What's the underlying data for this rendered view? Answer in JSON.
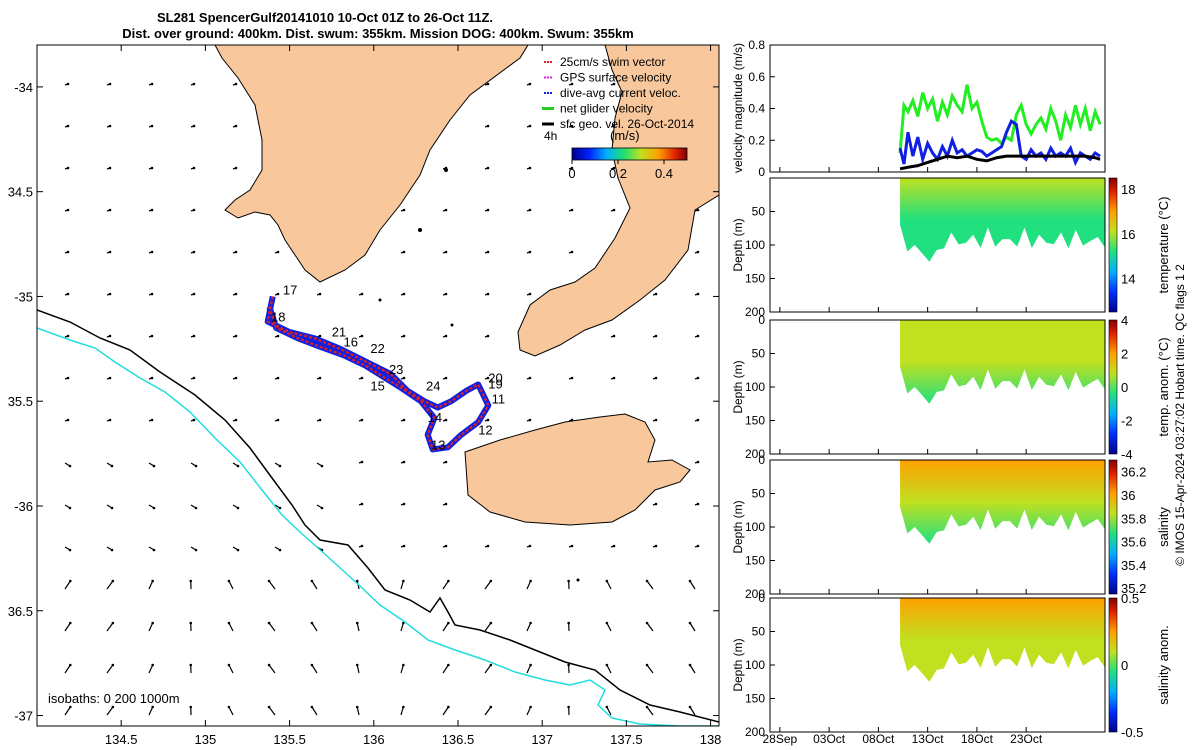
{
  "title": {
    "line1": "SL281 SpencerGulf20141010 10-Oct 01Z to 26-Oct 11Z.",
    "line2": "Dist. over ground: 400km. Dist. swum: 355km. Mission DOG: 400km. Swum: 355km"
  },
  "watermark": "© IMOS 15-Apr-2024 03:27:02 Hobart time. QC flags 1  2",
  "colors": {
    "land": "#f8c89c",
    "isobath_200": "#000000",
    "isobath_1000": "#22dddd",
    "track_red": "#e02020",
    "track_blue": "#1020e0",
    "surface_green": "#22ee22"
  },
  "map": {
    "xlim": [
      134.0,
      138.05
    ],
    "ylim": [
      -37.05,
      -33.8
    ],
    "xticks": [
      134.5,
      135,
      135.5,
      136,
      136.5,
      137,
      137.5,
      138
    ],
    "xtick_labels": [
      "134.5",
      "135",
      "135.5",
      "136",
      "136.5",
      "137",
      "137.5",
      "138"
    ],
    "yticks": [
      -34,
      -34.5,
      -35,
      -35.5,
      -36,
      -36.5,
      -37
    ],
    "ytick_labels": [
      "-34",
      "34.5",
      "-35",
      "35.5",
      "-36",
      "36.5",
      "-37"
    ],
    "isobath_note": "isobaths: 0   200  1000m",
    "colorbar": {
      "label": "(m/s)",
      "timestamp_label": "4h",
      "range": [
        0,
        0.5
      ],
      "ticks": [
        0,
        0.2,
        0.4
      ],
      "tick_labels": [
        "0",
        "0.2",
        "0.4"
      ]
    },
    "legend": [
      {
        "label": "25cm/s swim vector",
        "color": "#e02020",
        "style": "dot"
      },
      {
        "label": "GPS surface velocity",
        "color": "#dd22dd",
        "style": "dot"
      },
      {
        "label": "dive-avg current veloc.",
        "color": "#1020e0",
        "style": "dot"
      },
      {
        "label": "net glider velocity",
        "color": "#22cc22",
        "style": "line"
      },
      {
        "label": "sfc geo. vel. 26-Oct-2014",
        "color": "#000000",
        "style": "line"
      }
    ],
    "track": [
      [
        135.4,
        -35.0
      ],
      [
        135.37,
        -35.12
      ],
      [
        135.5,
        -35.17
      ],
      [
        135.65,
        -35.2
      ],
      [
        135.8,
        -35.25
      ],
      [
        135.9,
        -35.29
      ],
      [
        136.0,
        -35.33
      ],
      [
        136.1,
        -35.37
      ],
      [
        136.2,
        -35.45
      ],
      [
        136.3,
        -35.5
      ],
      [
        136.38,
        -35.53
      ],
      [
        136.46,
        -35.5
      ],
      [
        136.55,
        -35.45
      ],
      [
        136.62,
        -35.42
      ],
      [
        136.68,
        -35.52
      ],
      [
        136.62,
        -35.6
      ],
      [
        136.52,
        -35.66
      ],
      [
        136.44,
        -35.72
      ],
      [
        136.35,
        -35.73
      ],
      [
        136.32,
        -35.66
      ],
      [
        136.36,
        -35.58
      ],
      [
        136.28,
        -35.5
      ],
      [
        136.15,
        -35.43
      ],
      [
        136.05,
        -35.38
      ],
      [
        135.95,
        -35.33
      ],
      [
        135.82,
        -35.28
      ],
      [
        135.68,
        -35.24
      ],
      [
        135.55,
        -35.2
      ],
      [
        135.42,
        -35.15
      ],
      [
        135.38,
        -35.05
      ]
    ],
    "labels": [
      {
        "text": "17",
        "lon": 135.46,
        "lat": -34.99
      },
      {
        "text": "18",
        "lon": 135.39,
        "lat": -35.12
      },
      {
        "text": "21",
        "lon": 135.75,
        "lat": -35.19
      },
      {
        "text": "16",
        "lon": 135.82,
        "lat": -35.24
      },
      {
        "text": "22",
        "lon": 135.98,
        "lat": -35.27
      },
      {
        "text": "23",
        "lon": 136.09,
        "lat": -35.37
      },
      {
        "text": "15",
        "lon": 135.98,
        "lat": -35.45
      },
      {
        "text": "24",
        "lon": 136.31,
        "lat": -35.45
      },
      {
        "text": "20",
        "lon": 136.68,
        "lat": -35.41
      },
      {
        "text": "19",
        "lon": 136.68,
        "lat": -35.44
      },
      {
        "text": "11",
        "lon": 136.7,
        "lat": -35.51
      },
      {
        "text": "14",
        "lon": 136.32,
        "lat": -35.6
      },
      {
        "text": "12",
        "lon": 136.62,
        "lat": -35.66
      },
      {
        "text": "13",
        "lon": 136.34,
        "lat": -35.73
      }
    ]
  },
  "timeseries": {
    "xlim": [
      0,
      34
    ],
    "xticks": [
      1,
      6,
      11,
      16,
      21,
      26
    ],
    "xtick_labels": [
      "28Sep",
      "03Oct",
      "08Oct",
      "13Oct",
      "18Oct",
      "23Oct"
    ],
    "data_start": 13.2,
    "velocity": {
      "ylabel": "velocity magnitude (m/s)",
      "ylim": [
        0,
        0.8
      ],
      "yticks": [
        0,
        0.2,
        0.4,
        0.6,
        0.8
      ],
      "ytick_labels": [
        "0",
        "0.2",
        "0.4",
        "0.6",
        "0.8"
      ],
      "series": [
        {
          "name": "net glider velocity",
          "color": "#22ee22",
          "x": [
            13.2,
            13.6,
            14,
            14.5,
            15,
            15.5,
            16,
            16.5,
            17,
            17.5,
            18,
            18.5,
            19,
            19.5,
            20,
            20.5,
            21,
            21.5,
            22,
            22.5,
            23,
            23.5,
            24,
            24.5,
            25,
            25.5,
            26,
            26.5,
            27,
            27.5,
            28,
            28.5,
            29,
            29.5,
            30,
            30.5,
            31,
            31.5,
            32,
            32.5,
            33,
            33.5
          ],
          "y": [
            0.12,
            0.42,
            0.38,
            0.45,
            0.35,
            0.5,
            0.4,
            0.46,
            0.32,
            0.44,
            0.36,
            0.48,
            0.42,
            0.38,
            0.55,
            0.4,
            0.44,
            0.32,
            0.22,
            0.2,
            0.21,
            0.18,
            0.22,
            0.2,
            0.36,
            0.42,
            0.3,
            0.24,
            0.3,
            0.34,
            0.27,
            0.4,
            0.32,
            0.2,
            0.36,
            0.28,
            0.42,
            0.3,
            0.4,
            0.26,
            0.38,
            0.3
          ]
        },
        {
          "name": "dive-avg current veloc.",
          "color": "#1020e0",
          "x": [
            13.2,
            13.6,
            14,
            14.5,
            15,
            15.5,
            16,
            16.5,
            17,
            17.5,
            18,
            18.5,
            19,
            19.5,
            20,
            20.5,
            21,
            21.5,
            22,
            22.5,
            23,
            23.5,
            24,
            24.5,
            25,
            25.5,
            26,
            26.5,
            27,
            27.5,
            28,
            28.5,
            29,
            29.5,
            30,
            30.5,
            31,
            31.5,
            32,
            32.5,
            33,
            33.5
          ],
          "y": [
            0.15,
            0.05,
            0.25,
            0.1,
            0.22,
            0.08,
            0.18,
            0.12,
            0.08,
            0.16,
            0.1,
            0.2,
            0.12,
            0.14,
            0.1,
            0.12,
            0.14,
            0.13,
            0.1,
            0.12,
            0.14,
            0.16,
            0.25,
            0.32,
            0.3,
            0.1,
            0.08,
            0.14,
            0.1,
            0.12,
            0.08,
            0.15,
            0.1,
            0.12,
            0.1,
            0.15,
            0.06,
            0.12,
            0.1,
            0.08,
            0.12,
            0.1
          ]
        },
        {
          "name": "sfc geo. vel.",
          "color": "#000000",
          "x": [
            13.2,
            14,
            15,
            16,
            17,
            18,
            19,
            20,
            21,
            22,
            23,
            24,
            25,
            26,
            27,
            28,
            29,
            30,
            31,
            32,
            33,
            33.5
          ],
          "y": [
            0.02,
            0.03,
            0.04,
            0.06,
            0.08,
            0.1,
            0.09,
            0.1,
            0.08,
            0.07,
            0.09,
            0.1,
            0.1,
            0.1,
            0.1,
            0.1,
            0.1,
            0.1,
            0.1,
            0.1,
            0.09,
            0.08
          ]
        }
      ]
    },
    "panels": [
      {
        "ylabel": "Depth (m)",
        "clabel": "temperature (°C)",
        "colorbar_ticks": [
          "18",
          "16",
          "14"
        ],
        "colorbar_range": [
          12.5,
          18.5
        ],
        "yticks": [
          "50",
          "100",
          "150",
          "200"
        ],
        "ylim": [
          0,
          200
        ],
        "mean_value": 15.8
      },
      {
        "ylabel": "Depth (m)",
        "clabel": "temp. anom. (°C)",
        "colorbar_ticks": [
          "4",
          "2",
          "0",
          "-2",
          "-4"
        ],
        "colorbar_range": [
          -4,
          4
        ],
        "yticks": [
          "0",
          "50",
          "100",
          "150",
          "200"
        ],
        "ylim": [
          0,
          200
        ],
        "mean_value": 1.2
      },
      {
        "ylabel": "Depth (m)",
        "clabel": "salinity",
        "colorbar_ticks": [
          "36.2",
          "36",
          "35.8",
          "35.6",
          "35.4",
          "35.2"
        ],
        "colorbar_range": [
          35.15,
          36.3
        ],
        "yticks": [
          "0",
          "50",
          "100",
          "150",
          "200"
        ],
        "ylim": [
          0,
          200
        ],
        "mean_value": 35.95
      },
      {
        "ylabel": "Depth (m)",
        "clabel": "salinity anom.",
        "colorbar_ticks": [
          "0.5",
          "0",
          "-0.5"
        ],
        "colorbar_range": [
          -0.5,
          0.5
        ],
        "yticks": [
          "0",
          "50",
          "100",
          "150",
          "200"
        ],
        "ylim": [
          0,
          200
        ],
        "mean_value": 0.2
      }
    ]
  }
}
